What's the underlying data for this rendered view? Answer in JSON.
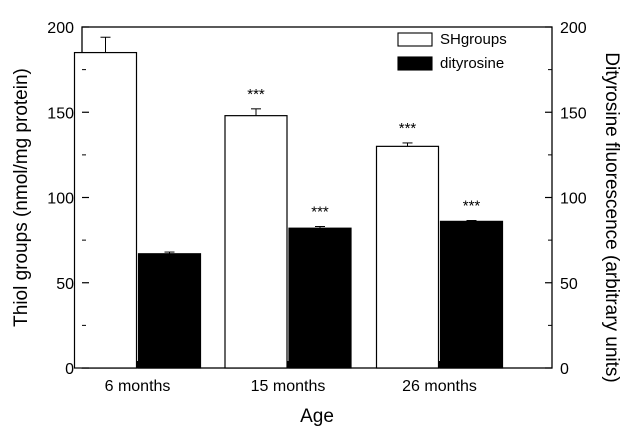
{
  "chart_data": {
    "type": "bar",
    "categories": [
      "6 months",
      "15 months",
      "26 months"
    ],
    "series": [
      {
        "name": "SHgroups",
        "axis": "left",
        "fill": "#ffffff",
        "values": [
          185,
          148,
          130
        ],
        "errors": [
          9,
          4,
          2
        ],
        "annotations": [
          "",
          "***",
          "***"
        ]
      },
      {
        "name": "dityrosine",
        "axis": "right",
        "fill": "#000000",
        "values": [
          67,
          82,
          86
        ],
        "errors": [
          1,
          1,
          0.5
        ],
        "annotations": [
          "",
          "***",
          "***"
        ]
      }
    ],
    "xlabel": "Age",
    "ylabel": "Thiol groups (nmol/mg protein)",
    "y2label": "Dityrosine fluorescence (arbitrary units)",
    "ylim": [
      0,
      200
    ],
    "y2lim": [
      0,
      200
    ],
    "yticks": [
      0,
      50,
      100,
      150,
      200
    ],
    "y2ticks": [
      0,
      50,
      100,
      150,
      200
    ],
    "grid": false,
    "legend_position": "top-right"
  }
}
